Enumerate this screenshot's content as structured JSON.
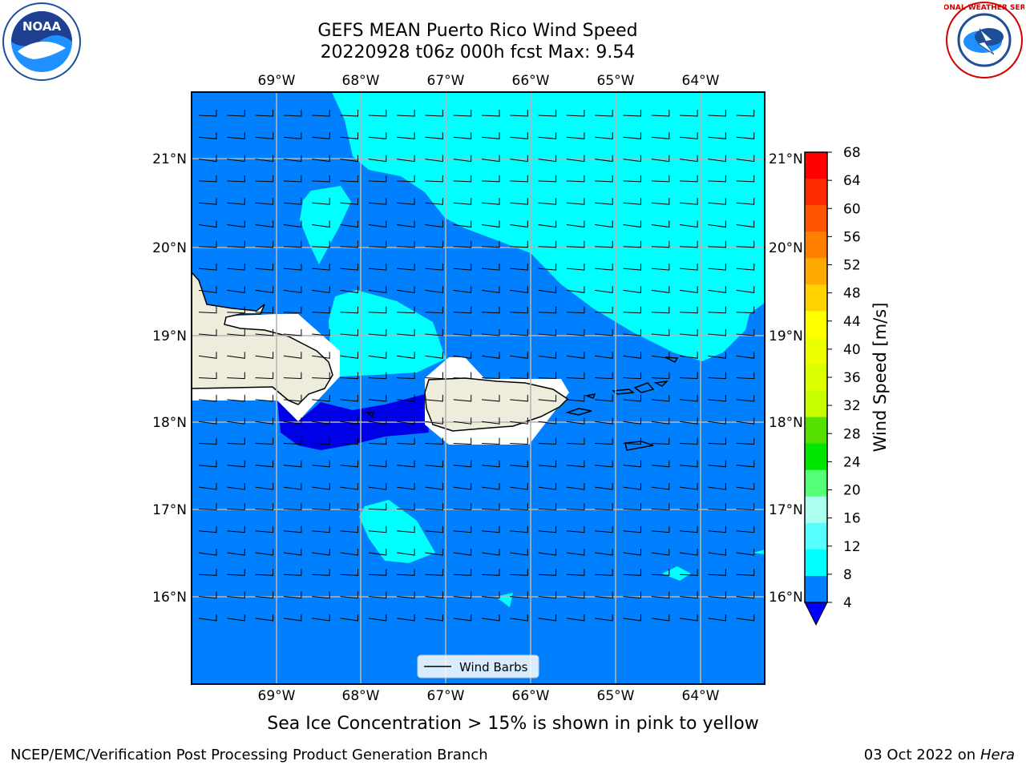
{
  "title": {
    "line1": "GEFS MEAN Puerto Rico Wind Speed",
    "line2": "20220928 t06z 000h fcst   Max: 9.54"
  },
  "map": {
    "lon_labels": [
      "69°W",
      "68°W",
      "67°W",
      "66°W",
      "65°W",
      "64°W"
    ],
    "lat_labels": [
      "21°N",
      "20°N",
      "19°N",
      "18°N",
      "17°N",
      "16°N"
    ],
    "legend_label": "Wind Barbs",
    "land_color": "#eeeddc",
    "ocean_color_4_8": "#0080ff",
    "ocean_color_8_12": "#00ffff",
    "ocean_color_below_4": "#0000e6"
  },
  "colorbar": {
    "label": "Wind Speed [m/s]",
    "ticks": [
      "68",
      "64",
      "60",
      "56",
      "52",
      "48",
      "44",
      "40",
      "36",
      "32",
      "28",
      "24",
      "20",
      "16",
      "12",
      "8",
      "4"
    ],
    "colors": [
      "#ff0000",
      "#ff2a00",
      "#ff5500",
      "#ff8000",
      "#ffaa00",
      "#ffd200",
      "#ffff00",
      "#eeff00",
      "#dcff00",
      "#c8ff00",
      "#55e000",
      "#00e600",
      "#55ff77",
      "#aaffee",
      "#55ffff",
      "#00ffff",
      "#0080ff"
    ],
    "under_color": "#0000ff"
  },
  "caption": "Sea Ice Concentration > 15% is shown in pink to yellow",
  "footer": {
    "left": "NCEP/EMC/Verification Post Processing Product Generation Branch",
    "right_date": "03 Oct 2022 on ",
    "right_host": "Hera"
  },
  "logos": {
    "noaa": "NOAA",
    "nws": "NATIONAL WEATHER SERVICE"
  }
}
